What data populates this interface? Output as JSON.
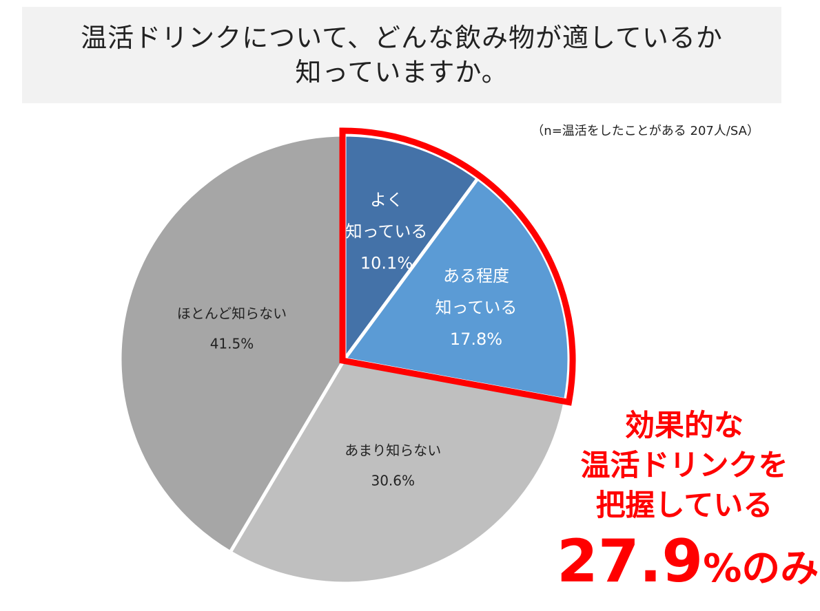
{
  "header": {
    "title_line1": "温活ドリンクについて、どんな飲み物が適しているか",
    "title_line2": "知っていますか。"
  },
  "note": "（n=温活をしたことがある 207人/SA）",
  "chart_data": {
    "type": "pie",
    "slices": [
      {
        "label_lines": [
          "よく",
          "知っている"
        ],
        "value": 10.1,
        "value_label": "10.1%",
        "color": "#4472a8",
        "text_color": "#ffffff"
      },
      {
        "label_lines": [
          "ある程度",
          "知っている"
        ],
        "value": 17.8,
        "value_label": "17.8%",
        "color": "#5b9bd5",
        "text_color": "#ffffff"
      },
      {
        "label_lines": [
          "あまり知らない"
        ],
        "value": 30.6,
        "value_label": "30.6%",
        "color": "#bfbfbf",
        "text_color": "#222222"
      },
      {
        "label_lines": [
          "ほとんど知らない"
        ],
        "value": 41.5,
        "value_label": "41.5%",
        "color": "#a6a6a6",
        "text_color": "#222222"
      }
    ],
    "start": "12 o'clock",
    "direction": "clockwise",
    "highlight": {
      "slices": [
        0,
        1
      ],
      "color": "#ff0000"
    }
  },
  "callout": {
    "line1": "効果的な",
    "line2": "温活ドリンクを",
    "line3": "把握している",
    "value": "27.9",
    "suffix": "%のみ"
  }
}
